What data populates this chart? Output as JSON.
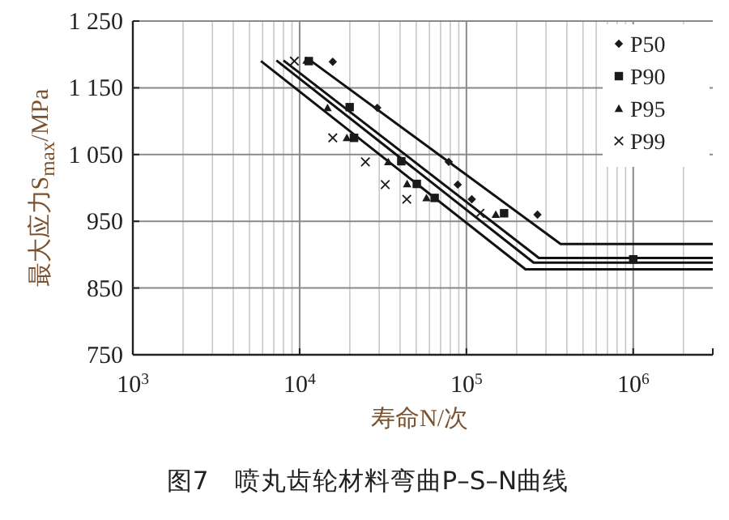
{
  "chart_data": {
    "type": "scatter",
    "title": "图7　喷丸齿轮材料弯曲P–S–N曲线",
    "xlabel": "寿命N/次",
    "ylabel": "最大应力S$_{max}$/MPa",
    "log": "x",
    "grid": true,
    "legend": "top right",
    "xlim": [
      1000,
      3000000
    ],
    "ylim": [
      750,
      1250
    ],
    "xticks": [
      {
        "value": 1000,
        "label": "10$^{3}$"
      },
      {
        "value": 10000,
        "label": "10$^{4}$"
      },
      {
        "value": 100000,
        "label": "10$^{5}$"
      },
      {
        "value": 1000000,
        "label": "10$^{6}$"
      }
    ],
    "yticks": [
      {
        "value": 750,
        "label": "750"
      },
      {
        "value": 850,
        "label": "850"
      },
      {
        "value": 950,
        "label": "950"
      },
      {
        "value": 1050,
        "label": "1 050"
      },
      {
        "value": 1150,
        "label": "1 150"
      },
      {
        "value": 1250,
        "label": "1 250"
      }
    ],
    "series": [
      {
        "name": "P50",
        "type": "scatter",
        "marker": "diamond",
        "color": "#1a1a1a",
        "x": [
          15800,
          29200,
          78300,
          88700,
          107700,
          266700
        ],
        "values": [
          1189,
          1120,
          1039,
          1005,
          983,
          960
        ]
      },
      {
        "name": "P90",
        "type": "scatter",
        "marker": "square",
        "color": "#1a1a1a",
        "x": [
          11350,
          19950,
          21200,
          40700,
          50400,
          64500,
          168200,
          1000000
        ],
        "values": [
          1190,
          1121,
          1075,
          1040,
          1006,
          985,
          962,
          893
        ]
      },
      {
        "name": "P95",
        "type": "scatter",
        "marker": "triangle",
        "color": "#1a1a1a",
        "x": [
          11000,
          14700,
          19200,
          34000,
          44100,
          57600,
          150000
        ],
        "values": [
          1191,
          1120,
          1075,
          1039,
          1006,
          985,
          960
        ]
      },
      {
        "name": "P99",
        "type": "scatter",
        "marker": "cross",
        "color": "#1a1a1a",
        "x": [
          9300,
          15800,
          24800,
          32600,
          43900,
          120500
        ],
        "values": [
          1190,
          1075,
          1039,
          1005,
          983,
          962
        ]
      },
      {
        "type": "line",
        "color": "#111111",
        "x": [
          11600,
          367000,
          3000000
        ],
        "values": [
          1191,
          916,
          916
        ]
      },
      {
        "type": "line",
        "color": "#111111",
        "x": [
          8000,
          272000,
          3000000
        ],
        "values": [
          1191,
          895,
          895
        ]
      },
      {
        "type": "line",
        "color": "#111111",
        "x": [
          7260,
          253000,
          3000000
        ],
        "values": [
          1191,
          888,
          888
        ]
      },
      {
        "type": "line",
        "color": "#111111",
        "x": [
          5860,
          226000,
          3000000
        ],
        "values": [
          1190,
          878,
          878
        ]
      }
    ]
  }
}
